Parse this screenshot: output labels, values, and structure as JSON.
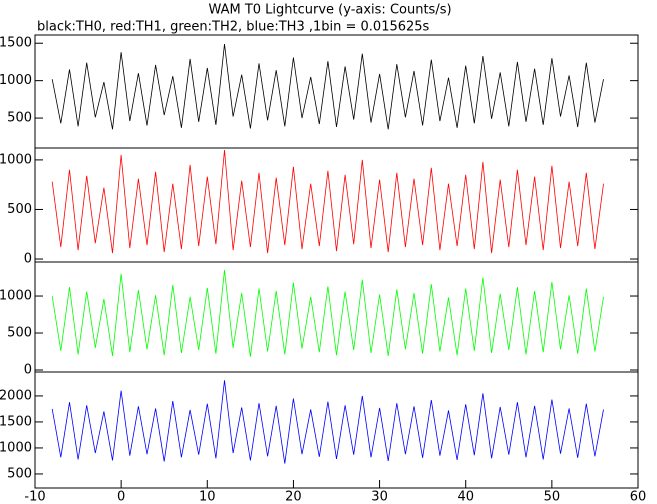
{
  "title": "WAM T0 Lightcurve (y-axis: Counts/s)",
  "subtitle": "black:TH0, red:TH1, green:TH2, blue:TH3 ,1bin = 0.015625s",
  "chart_data": [
    {
      "type": "line",
      "xlim": [
        -10,
        60
      ],
      "ylim": [
        100,
        1610
      ],
      "yticks": [
        500,
        1000,
        1500
      ],
      "x": [
        -8,
        -7,
        -6,
        -5,
        -4,
        -3,
        -2,
        -1,
        0,
        1,
        2,
        3,
        4,
        5,
        6,
        7,
        8,
        9,
        10,
        11,
        12,
        13,
        14,
        15,
        16,
        17,
        18,
        19,
        20,
        21,
        22,
        23,
        24,
        25,
        26,
        27,
        28,
        29,
        30,
        31,
        32,
        33,
        34,
        35,
        36,
        37,
        38,
        39,
        40,
        41,
        42,
        43,
        44,
        45,
        46,
        47,
        48,
        49,
        50,
        51,
        52,
        53,
        54,
        55,
        56
      ],
      "series": [
        {
          "color": "#000000",
          "values": [
            1020,
            430,
            1150,
            390,
            1240,
            510,
            980,
            350,
            1380,
            460,
            1100,
            400,
            1210,
            540,
            1060,
            370,
            1290,
            450,
            1170,
            410,
            1490,
            520,
            1080,
            360,
            1230,
            470,
            1140,
            390,
            1310,
            500,
            1050,
            420,
            1260,
            380,
            1190,
            480,
            1360,
            440,
            1090,
            350,
            1220,
            510,
            1130,
            400,
            1280,
            460,
            1040,
            370,
            1200,
            430,
            1330,
            490,
            1110,
            390,
            1250,
            450,
            1160,
            410,
            1300,
            520,
            1070,
            380,
            1240,
            440,
            1020
          ]
        }
      ]
    },
    {
      "type": "line",
      "xlim": [
        -10,
        60
      ],
      "ylim": [
        -30,
        1120
      ],
      "yticks": [
        0,
        500,
        1000
      ],
      "x": [
        -8,
        -7,
        -6,
        -5,
        -4,
        -3,
        -2,
        -1,
        0,
        1,
        2,
        3,
        4,
        5,
        6,
        7,
        8,
        9,
        10,
        11,
        12,
        13,
        14,
        15,
        16,
        17,
        18,
        19,
        20,
        21,
        22,
        23,
        24,
        25,
        26,
        27,
        28,
        29,
        30,
        31,
        32,
        33,
        34,
        35,
        36,
        37,
        38,
        39,
        40,
        41,
        42,
        43,
        44,
        45,
        46,
        47,
        48,
        49,
        50,
        51,
        52,
        53,
        54,
        55,
        56
      ],
      "series": [
        {
          "color": "#ff0000",
          "values": [
            780,
            120,
            900,
            90,
            840,
            160,
            720,
            60,
            1050,
            110,
            810,
            140,
            880,
            70,
            760,
            100,
            950,
            130,
            830,
            150,
            1100,
            90,
            790,
            120,
            870,
            60,
            820,
            140,
            930,
            100,
            760,
            130,
            890,
            80,
            850,
            150,
            1000,
            110,
            800,
            70,
            870,
            120,
            810,
            140,
            920,
            90,
            760,
            130,
            850,
            100,
            980,
            60,
            800,
            120,
            900,
            140,
            830,
            90,
            940,
            110,
            780,
            130,
            870,
            100,
            760
          ]
        }
      ]
    },
    {
      "type": "line",
      "xlim": [
        -10,
        60
      ],
      "ylim": [
        -27,
        1460
      ],
      "yticks": [
        0,
        500,
        1000
      ],
      "x": [
        -8,
        -7,
        -6,
        -5,
        -4,
        -3,
        -2,
        -1,
        0,
        1,
        2,
        3,
        4,
        5,
        6,
        7,
        8,
        9,
        10,
        11,
        12,
        13,
        14,
        15,
        16,
        17,
        18,
        19,
        20,
        21,
        22,
        23,
        24,
        25,
        26,
        27,
        28,
        29,
        30,
        31,
        32,
        33,
        34,
        35,
        36,
        37,
        38,
        39,
        40,
        41,
        42,
        43,
        44,
        45,
        46,
        47,
        48,
        49,
        50,
        51,
        52,
        53,
        54,
        55,
        56
      ],
      "series": [
        {
          "color": "#00ff00",
          "values": [
            1000,
            260,
            1120,
            210,
            1060,
            300,
            960,
            190,
            1300,
            240,
            1080,
            280,
            1010,
            200,
            1150,
            230,
            990,
            270,
            1110,
            220,
            1350,
            300,
            1040,
            180,
            1100,
            250,
            1070,
            210,
            1180,
            290,
            990,
            240,
            1130,
            200,
            1060,
            270,
            1220,
            230,
            1020,
            190,
            1090,
            280,
            1040,
            220,
            1160,
            250,
            980,
            200,
            1100,
            260,
            1250,
            230,
            1030,
            270,
            1120,
            210,
            1070,
            240,
            1190,
            280,
            1010,
            220,
            1100,
            250,
            990
          ]
        }
      ]
    },
    {
      "type": "line",
      "xlim": [
        -10,
        60
      ],
      "ylim": [
        230,
        2460
      ],
      "yticks": [
        500,
        1000,
        1500,
        2000
      ],
      "xticks": [
        -10,
        0,
        10,
        20,
        30,
        40,
        50,
        60
      ],
      "x": [
        -8,
        -7,
        -6,
        -5,
        -4,
        -3,
        -2,
        -1,
        0,
        1,
        2,
        3,
        4,
        5,
        6,
        7,
        8,
        9,
        10,
        11,
        12,
        13,
        14,
        15,
        16,
        17,
        18,
        19,
        20,
        21,
        22,
        23,
        24,
        25,
        26,
        27,
        28,
        29,
        30,
        31,
        32,
        33,
        34,
        35,
        36,
        37,
        38,
        39,
        40,
        41,
        42,
        43,
        44,
        45,
        46,
        47,
        48,
        49,
        50,
        51,
        52,
        53,
        54,
        55,
        56
      ],
      "series": [
        {
          "color": "#0000ff",
          "values": [
            1750,
            820,
            1880,
            780,
            1820,
            900,
            1700,
            760,
            2100,
            850,
            1800,
            880,
            1760,
            740,
            1900,
            820,
            1730,
            870,
            1850,
            800,
            2300,
            900,
            1780,
            760,
            1860,
            840,
            1810,
            700,
            1950,
            880,
            1740,
            830,
            1890,
            790,
            1820,
            870,
            2000,
            820,
            1770,
            750,
            1860,
            880,
            1800,
            810,
            1920,
            850,
            1720,
            770,
            1840,
            860,
            2050,
            800,
            1790,
            870,
            1880,
            820,
            1810,
            780,
            1930,
            890,
            1760,
            810,
            1850,
            840,
            1740
          ]
        }
      ]
    }
  ]
}
